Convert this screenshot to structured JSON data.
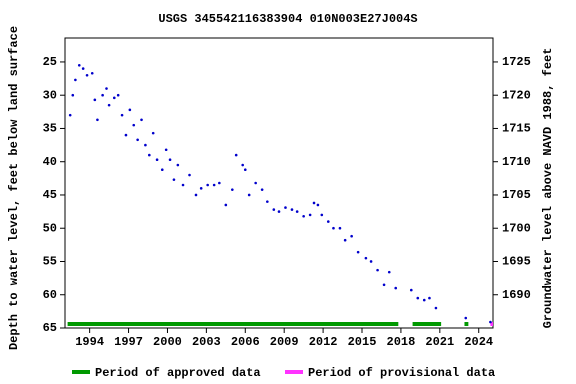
{
  "chart_data": {
    "type": "scatter",
    "title": "USGS 345542116383904 010N003E27J004S",
    "ylabel": "Depth to water level, feet below land surface",
    "y2label": "Groundwater level above NAVD 1988, feet",
    "x": [
      1992.5,
      1992.7,
      1992.9,
      1993.2,
      1993.5,
      1993.8,
      1994.2,
      1994.4,
      1994.6,
      1995.0,
      1995.3,
      1995.5,
      1995.9,
      1996.2,
      1996.5,
      1996.8,
      1997.1,
      1997.4,
      1997.7,
      1998.0,
      1998.3,
      1998.6,
      1998.9,
      1999.2,
      1999.6,
      1999.9,
      2000.2,
      2000.5,
      2000.8,
      2001.2,
      2001.7,
      2002.2,
      2002.6,
      2003.1,
      2003.6,
      2004.0,
      2004.5,
      2005.0,
      2005.3,
      2005.8,
      2006.0,
      2006.3,
      2006.8,
      2007.3,
      2007.7,
      2008.2,
      2008.6,
      2009.1,
      2009.6,
      2010.0,
      2010.5,
      2011.0,
      2011.3,
      2011.6,
      2011.9,
      2012.4,
      2012.8,
      2013.3,
      2013.7,
      2014.2,
      2014.7,
      2015.3,
      2015.7,
      2016.2,
      2016.7,
      2017.1,
      2017.6,
      2018.8,
      2019.3,
      2019.8,
      2020.2,
      2020.7,
      2023.0,
      2024.9
    ],
    "values": [
      33,
      30,
      27.7,
      25.5,
      26,
      27,
      26.7,
      30.7,
      33.7,
      30,
      29,
      31.5,
      30.4,
      30,
      33,
      36,
      32.2,
      34.5,
      36.7,
      33.7,
      37.5,
      39,
      35.7,
      39.7,
      41.2,
      38.2,
      39.7,
      42.7,
      40.5,
      43.5,
      42,
      45,
      44,
      43.5,
      43.5,
      43.2,
      46.5,
      44.2,
      39,
      40.5,
      41.2,
      45,
      43.2,
      44.2,
      46,
      47.2,
      47.5,
      46.9,
      47.2,
      47.5,
      48.2,
      48,
      46.2,
      46.5,
      48,
      49,
      50,
      50,
      51.8,
      51.2,
      53.6,
      54.5,
      55,
      56.3,
      58.5,
      56.6,
      59,
      59.3,
      60.5,
      60.8,
      60.5,
      62,
      63.5,
      64.1
    ],
    "color": "#0000cc",
    "xlim": [
      1992.1,
      2025.1
    ],
    "xticks": [
      1994,
      1997,
      2000,
      2003,
      2006,
      2009,
      2012,
      2015,
      2018,
      2021,
      2024
    ],
    "ylim": [
      21.4,
      65
    ],
    "y_inverted": true,
    "yticks": [
      25,
      30,
      35,
      40,
      45,
      50,
      55,
      60,
      65
    ],
    "y2lim": [
      1685,
      1728.6
    ],
    "y2ticks": [
      1690,
      1695,
      1700,
      1705,
      1710,
      1715,
      1720,
      1725
    ],
    "periods": [
      {
        "name": "Period of approved data",
        "color": "#009900",
        "spans": [
          [
            1992.3,
            2017.8
          ],
          [
            2018.9,
            2021.1
          ],
          [
            2022.9,
            2023.2
          ]
        ]
      },
      {
        "name": "Period of provisional data",
        "color": "#ff33ff",
        "spans": [
          [
            2024.9,
            2025.1
          ]
        ]
      }
    ]
  }
}
